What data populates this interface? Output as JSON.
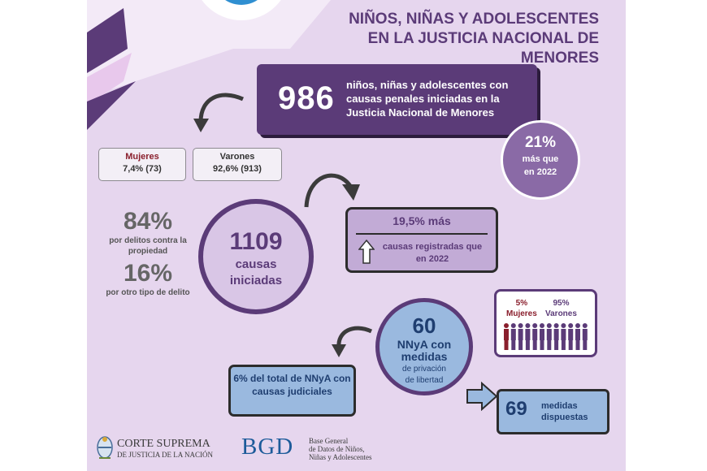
{
  "title": {
    "line1": "NIÑOS, NIÑAS Y ADOLESCENTES",
    "line2": "EN LA JUSTICIA NACIONAL DE MENORES"
  },
  "headline": {
    "number": "986",
    "text": "niños, niñas y adolescentes con causas penales iniciadas en la Justicia Nacional de Menores"
  },
  "increase_2022": {
    "pct": "21%",
    "text_line1": "más que",
    "text_line2": "en 2022"
  },
  "gender": {
    "women_label": "Mujeres",
    "women_value": "7,4% (73)",
    "men_label": "Varones",
    "men_value": "92,6% (913)"
  },
  "crime_type": {
    "property_pct": "84%",
    "property_text": "por delitos contra la propiedad",
    "other_pct": "16%",
    "other_text": "por otro tipo de delito"
  },
  "cases": {
    "number": "1109",
    "text_line1": "causas",
    "text_line2": "iniciadas"
  },
  "cases_increase": {
    "headline": "19,5% más",
    "text": "causas registradas que en 2022"
  },
  "custody": {
    "number": "60",
    "text_line1": "NNyA con",
    "text_line2": "medidas",
    "sub_line1": "de privación",
    "sub_line2": "de libertad"
  },
  "custody_share": {
    "text": "6% del total de NNyA con causas judiciales"
  },
  "custody_gender": {
    "women_pct": "5%",
    "women_label": "Mujeres",
    "men_pct": "95%",
    "men_label": "Varones",
    "icons_total": 12,
    "icons_women": 1
  },
  "measures": {
    "number": "69",
    "text_line1": "medidas",
    "text_line2": "dispuestas"
  },
  "footer": {
    "court_name": "CORTE SUPREMA",
    "court_sub": "DE JUSTICIA DE LA NACIÓN",
    "bgd_logo": "BGD",
    "bgd_line1": "Base General",
    "bgd_line2": "de Datos de Niños,",
    "bgd_line3": "Niñas y Adolescentes"
  },
  "colors": {
    "background": "#e6d6ee",
    "primary_purple": "#5b3b78",
    "light_purple": "#c2abd6",
    "blue": "#9ab9df",
    "women_red": "#8a1f2d"
  }
}
